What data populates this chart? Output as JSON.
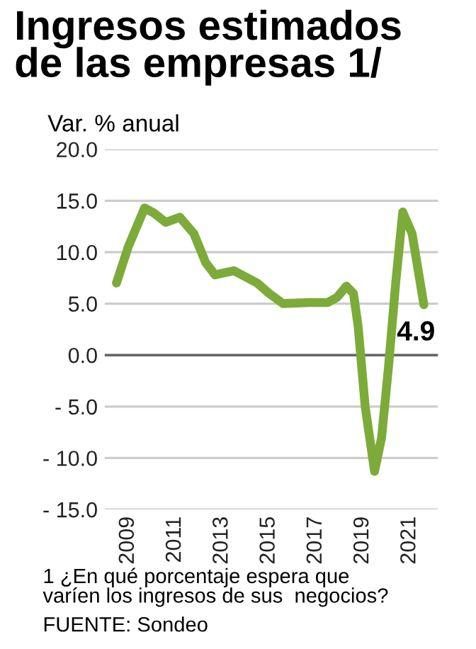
{
  "chart_data": {
    "type": "line",
    "title": "Ingresos estimados\nde las empresas 1/",
    "ylabel": "Var. % anual",
    "x": [
      2008.5,
      2009.0,
      2009.7,
      2010.1,
      2010.6,
      2011.2,
      2011.8,
      2012.3,
      2012.7,
      2013.5,
      2014.5,
      2015.0,
      2015.6,
      2016.7,
      2017.5,
      2017.9,
      2018.3,
      2018.6,
      2018.8,
      2019.1,
      2019.5,
      2019.8,
      2020.1,
      2020.4,
      2020.7,
      2021.1,
      2021.6
    ],
    "series": [
      {
        "color": "#7cab3a",
        "values": [
          7.0,
          10.5,
          14.3,
          13.8,
          12.9,
          13.4,
          11.8,
          9.0,
          7.8,
          8.2,
          7.0,
          6.0,
          5.0,
          5.1,
          5.1,
          5.6,
          6.7,
          6.0,
          2.8,
          -5.0,
          -11.3,
          -8.0,
          -1.0,
          7.0,
          13.9,
          11.8,
          4.9
        ]
      }
    ],
    "ylim": [
      -15,
      20
    ],
    "yticks": [
      {
        "value": 20,
        "label": "20.0"
      },
      {
        "value": 15,
        "label": "15.0"
      },
      {
        "value": 10,
        "label": "10.0"
      },
      {
        "value": 5,
        "label": "5.0"
      },
      {
        "value": 0,
        "label": "0.0"
      },
      {
        "value": -5,
        "label": "- 5.0"
      },
      {
        "value": -10,
        "label": "- 10.0"
      },
      {
        "value": -15,
        "label": "- 15.0"
      }
    ],
    "xlim": [
      2008.0,
      2022.2
    ],
    "xticks": [
      2009,
      2011,
      2013,
      2015,
      2017,
      2019,
      2021
    ],
    "grid": "y",
    "marker": "none",
    "line_style": "solid",
    "ref_lines": [
      {
        "axis": "y",
        "value": 0,
        "color": "#666666"
      }
    ],
    "annotations": [
      {
        "text": "4.9",
        "x": 2021.6,
        "y": 4.9
      },
      "1 ¿En qué porcentaje espera que\nvaríen los ingresos de sus  negocios?",
      "FUENTE: Sondeo"
    ]
  }
}
